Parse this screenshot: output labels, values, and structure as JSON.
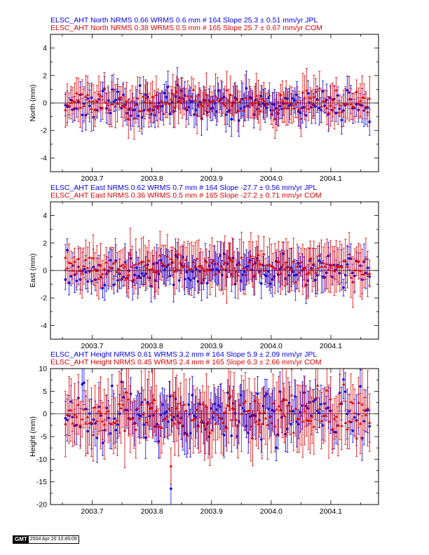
{
  "colors": {
    "jpl": "#0000ee",
    "com": "#dd0000",
    "axis": "#000000"
  },
  "stamp": {
    "logo": "GMT",
    "time": "2004 Apr 20 10:49:09"
  },
  "chart_data": [
    {
      "type": "scatter",
      "component": "North",
      "ylabel": "North (mm)",
      "ylim": [
        -5,
        5
      ],
      "yticks": [
        -4,
        -2,
        0,
        2,
        4
      ],
      "xlim": [
        2003.63,
        2004.18
      ],
      "xticks": [
        2003.7,
        2003.8,
        2003.9,
        2004.0,
        2004.1
      ],
      "xtick_labels": [
        "2003.7",
        "2003.8",
        "2003.9",
        "2004.0",
        "2004.1"
      ],
      "legend": [
        {
          "text": "ELSC_AHT North NRMS 0.66 WRMS  0.6 mm # 164 Slope   25.3 ±  0.51 mm/yr JPL",
          "color": "#0000ee"
        },
        {
          "text": "ELSC_AHT North NRMS 0.38 WRMS  0.5 mm # 165 Slope   25.7 ±  0.67 mm/yr COM",
          "color": "#dd0000"
        }
      ],
      "series": [
        {
          "name": "JPL",
          "color": "#0000ee",
          "count": 164,
          "x_start": 2003.655,
          "x_end": 2004.165,
          "offset": 0,
          "scatter": 0.55,
          "error": 0.9,
          "seed": 11,
          "marker": "circle"
        },
        {
          "name": "COM",
          "color": "#dd0000",
          "count": 165,
          "x_start": 2003.655,
          "x_end": 2004.165,
          "offset": 0,
          "scatter": 0.45,
          "error": 1.2,
          "seed": 23,
          "marker": "triangle"
        }
      ]
    },
    {
      "type": "scatter",
      "component": "East",
      "ylabel": "East (mm)",
      "ylim": [
        -5,
        5
      ],
      "yticks": [
        -4,
        -2,
        0,
        2,
        4
      ],
      "xlim": [
        2003.63,
        2004.18
      ],
      "xticks": [
        2003.7,
        2003.8,
        2003.9,
        2004.0,
        2004.1
      ],
      "xtick_labels": [
        "2003.7",
        "2003.8",
        "2003.9",
        "2004.0",
        "2004.1"
      ],
      "legend": [
        {
          "text": "ELSC_AHT East NRMS 0.62 WRMS  0.7 mm # 164 Slope  -27.7 ±  0.56 mm/yr JPL",
          "color": "#0000ee"
        },
        {
          "text": "ELSC_AHT East NRMS 0.36 WRMS  0.5 mm # 165 Slope  -27.2 ±  0.71 mm/yr COM",
          "color": "#dd0000"
        }
      ],
      "series": [
        {
          "name": "JPL",
          "color": "#0000ee",
          "count": 164,
          "x_start": 2003.655,
          "x_end": 2004.165,
          "offset": 0,
          "scatter": 0.6,
          "error": 1.0,
          "seed": 37,
          "marker": "circle"
        },
        {
          "name": "COM",
          "color": "#dd0000",
          "count": 165,
          "x_start": 2003.655,
          "x_end": 2004.165,
          "offset": 0.3,
          "scatter": 0.45,
          "error": 1.4,
          "seed": 53,
          "marker": "triangle"
        }
      ]
    },
    {
      "type": "scatter",
      "component": "Height",
      "ylabel": "Height (mm)",
      "ylim": [
        -20,
        10
      ],
      "yticks": [
        -20,
        -15,
        -10,
        -5,
        0,
        5,
        10
      ],
      "xlim": [
        2003.63,
        2004.18
      ],
      "xticks": [
        2003.7,
        2003.8,
        2003.9,
        2004.0,
        2004.1
      ],
      "xtick_labels": [
        "2003.7",
        "2003.8",
        "2003.9",
        "2004.0",
        "2004.1"
      ],
      "legend": [
        {
          "text": "ELSC_AHT Height NRMS 0.61 WRMS  3.2 mm # 164 Slope    5.9 ±  2.09 mm/yr JPL",
          "color": "#0000ee"
        },
        {
          "text": "ELSC_AHT Height NRMS 0.45 WRMS  2.4 mm # 165 Slope    6.3 ±  2.66 mm/yr COM",
          "color": "#dd0000"
        }
      ],
      "series": [
        {
          "name": "JPL",
          "color": "#0000ee",
          "count": 164,
          "x_start": 2003.655,
          "x_end": 2004.165,
          "offset": 0,
          "scatter": 3.0,
          "error": 4.0,
          "seed": 71,
          "marker": "circle",
          "outlier": {
            "x": 2003.832,
            "y": -16.5,
            "error": 5
          }
        },
        {
          "name": "COM",
          "color": "#dd0000",
          "count": 165,
          "x_start": 2003.655,
          "x_end": 2004.165,
          "offset": 0,
          "scatter": 2.3,
          "error": 6.0,
          "seed": 89,
          "marker": "triangle",
          "outlier": {
            "x": 2003.832,
            "y": -11.5,
            "error": 4
          }
        }
      ]
    }
  ]
}
